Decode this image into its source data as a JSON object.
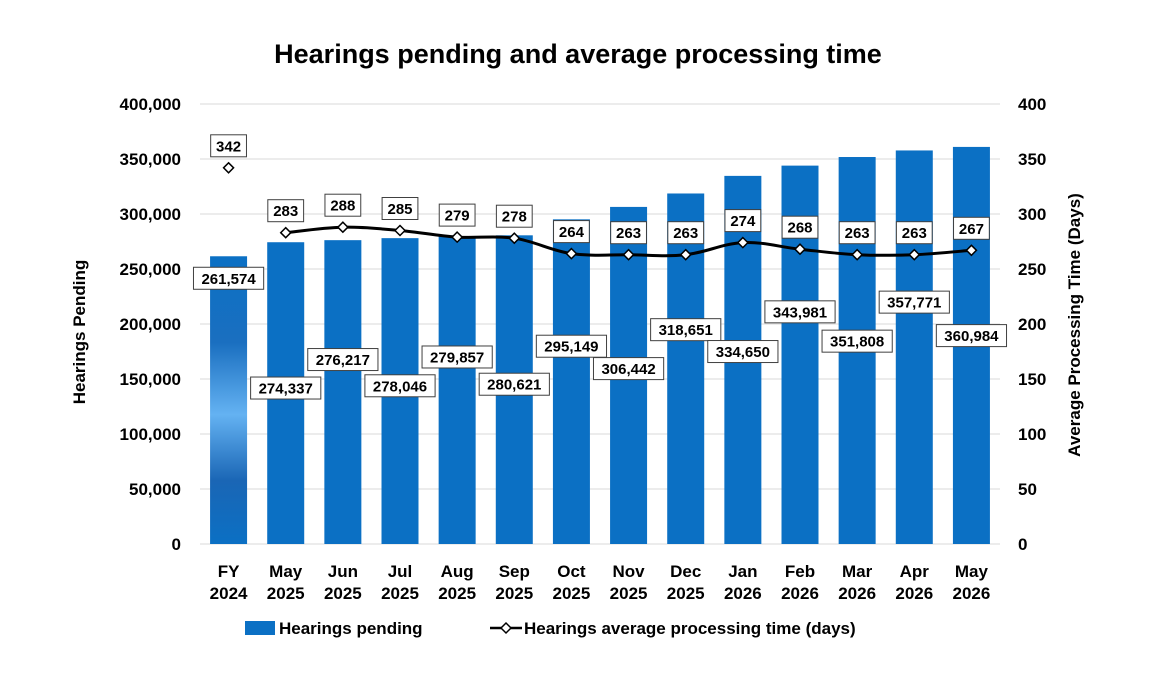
{
  "chart_data": {
    "type": "bar",
    "title": "Hearings pending and average processing time",
    "categories": [
      [
        "FY",
        "2024"
      ],
      [
        "May",
        "2025"
      ],
      [
        "Jun",
        "2025"
      ],
      [
        "Jul",
        "2025"
      ],
      [
        "Aug",
        "2025"
      ],
      [
        "Sep",
        "2025"
      ],
      [
        "Oct",
        "2025"
      ],
      [
        "Nov",
        "2025"
      ],
      [
        "Dec",
        "2025"
      ],
      [
        "Jan",
        "2026"
      ],
      [
        "Feb",
        "2026"
      ],
      [
        "Mar",
        "2026"
      ],
      [
        "Apr",
        "2026"
      ],
      [
        "May",
        "2026"
      ]
    ],
    "ylabel": "Hearings Pending",
    "y2label": "Average Processing Time (Days)",
    "ylim": [
      0,
      400000
    ],
    "y2lim": [
      0,
      400
    ],
    "yticks": [
      "0",
      "50,000",
      "100,000",
      "150,000",
      "200,000",
      "250,000",
      "300,000",
      "350,000",
      "400,000"
    ],
    "y2ticks": [
      "0",
      "50",
      "100",
      "150",
      "200",
      "250",
      "300",
      "350",
      "400"
    ],
    "grid": true,
    "legend_position": "bottom",
    "series": [
      {
        "name": "Hearings pending",
        "type": "bar",
        "axis": "left",
        "color": "#0b70c4",
        "values": [
          261574,
          274337,
          276217,
          278046,
          279857,
          280621,
          295149,
          306442,
          318651,
          334650,
          343981,
          351808,
          357771,
          360984
        ],
        "labels": [
          "261,574",
          "274,337",
          "276,217",
          "278,046",
          "279,857",
          "280,621",
          "295,149",
          "306,442",
          "318,651",
          "334,650",
          "343,981",
          "351,808",
          "357,771",
          "360,984"
        ]
      },
      {
        "name": "Hearings average processing time (days)",
        "type": "line",
        "axis": "right",
        "color": "#000000",
        "values": [
          342,
          283,
          288,
          285,
          279,
          278,
          264,
          263,
          263,
          274,
          268,
          263,
          263,
          267
        ],
        "labels": [
          "342",
          "283",
          "288",
          "285",
          "279",
          "278",
          "264",
          "263",
          "263",
          "274",
          "268",
          "263",
          "263",
          "267"
        ]
      }
    ]
  }
}
